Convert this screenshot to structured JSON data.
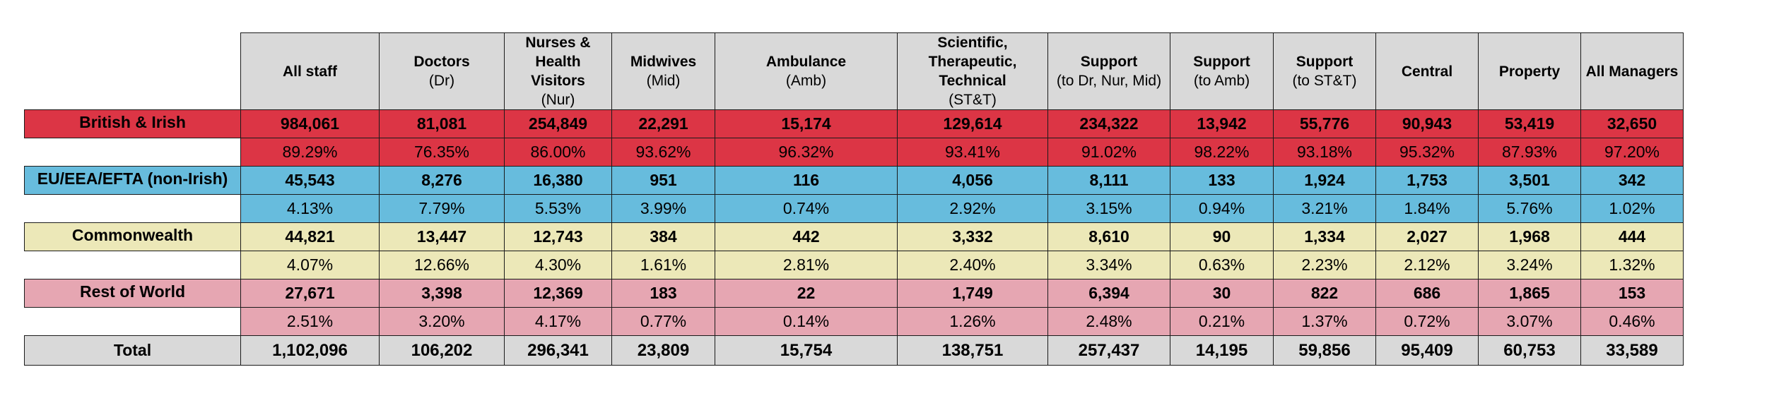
{
  "chart_data": {
    "type": "table",
    "title": "",
    "columns": [
      {
        "title": "All staff",
        "sub": ""
      },
      {
        "title": "Doctors",
        "sub": "(Dr)"
      },
      {
        "title": "Nurses & Health Visitors",
        "sub": "(Nur)"
      },
      {
        "title": "Midwives",
        "sub": "(Mid)"
      },
      {
        "title": "Ambulance",
        "sub": "(Amb)"
      },
      {
        "title": "Scientific, Therapeutic, Technical",
        "sub": "(ST&T)"
      },
      {
        "title": "Support",
        "sub": "(to Dr, Nur, Mid)"
      },
      {
        "title": "Support",
        "sub": "(to Amb)"
      },
      {
        "title": "Support",
        "sub": "(to ST&T)"
      },
      {
        "title": "Central",
        "sub": ""
      },
      {
        "title": "Property",
        "sub": ""
      },
      {
        "title": "All Managers",
        "sub": ""
      }
    ],
    "groups": [
      {
        "key": "british",
        "label": "British & Irish",
        "counts": [
          "984,061",
          "81,081",
          "254,849",
          "22,291",
          "15,174",
          "129,614",
          "234,322",
          "13,942",
          "55,776",
          "90,943",
          "53,419",
          "32,650"
        ],
        "percents": [
          "89.29%",
          "76.35%",
          "86.00%",
          "93.62%",
          "96.32%",
          "93.41%",
          "91.02%",
          "98.22%",
          "93.18%",
          "95.32%",
          "87.93%",
          "97.20%"
        ],
        "color": "#dc3545"
      },
      {
        "key": "eu",
        "label": "EU/EEA/EFTA (non-Irish)",
        "counts": [
          "45,543",
          "8,276",
          "16,380",
          "951",
          "116",
          "4,056",
          "8,111",
          "133",
          "1,924",
          "1,753",
          "3,501",
          "342"
        ],
        "percents": [
          "4.13%",
          "7.79%",
          "5.53%",
          "3.99%",
          "0.74%",
          "2.92%",
          "3.15%",
          "0.94%",
          "3.21%",
          "1.84%",
          "5.76%",
          "1.02%"
        ],
        "color": "#67bcdd"
      },
      {
        "key": "com",
        "label": "Commonwealth",
        "counts": [
          "44,821",
          "13,447",
          "12,743",
          "384",
          "442",
          "3,332",
          "8,610",
          "90",
          "1,334",
          "2,027",
          "1,968",
          "444"
        ],
        "percents": [
          "4.07%",
          "12.66%",
          "4.30%",
          "1.61%",
          "2.81%",
          "2.40%",
          "3.34%",
          "0.63%",
          "2.23%",
          "2.12%",
          "3.24%",
          "1.32%"
        ],
        "color": "#ece8b8"
      },
      {
        "key": "row",
        "label": "Rest of World",
        "counts": [
          "27,671",
          "3,398",
          "12,369",
          "183",
          "22",
          "1,749",
          "6,394",
          "30",
          "822",
          "686",
          "1,865",
          "153"
        ],
        "percents": [
          "2.51%",
          "3.20%",
          "4.17%",
          "0.77%",
          "0.14%",
          "1.26%",
          "2.48%",
          "0.21%",
          "1.37%",
          "0.72%",
          "3.07%",
          "0.46%"
        ],
        "color": "#e6a6b2"
      }
    ],
    "total": {
      "label": "Total",
      "values": [
        "1,102,096",
        "106,202",
        "296,341",
        "23,809",
        "15,754",
        "138,751",
        "257,437",
        "14,195",
        "59,856",
        "95,409",
        "60,753",
        "33,589"
      ]
    }
  }
}
